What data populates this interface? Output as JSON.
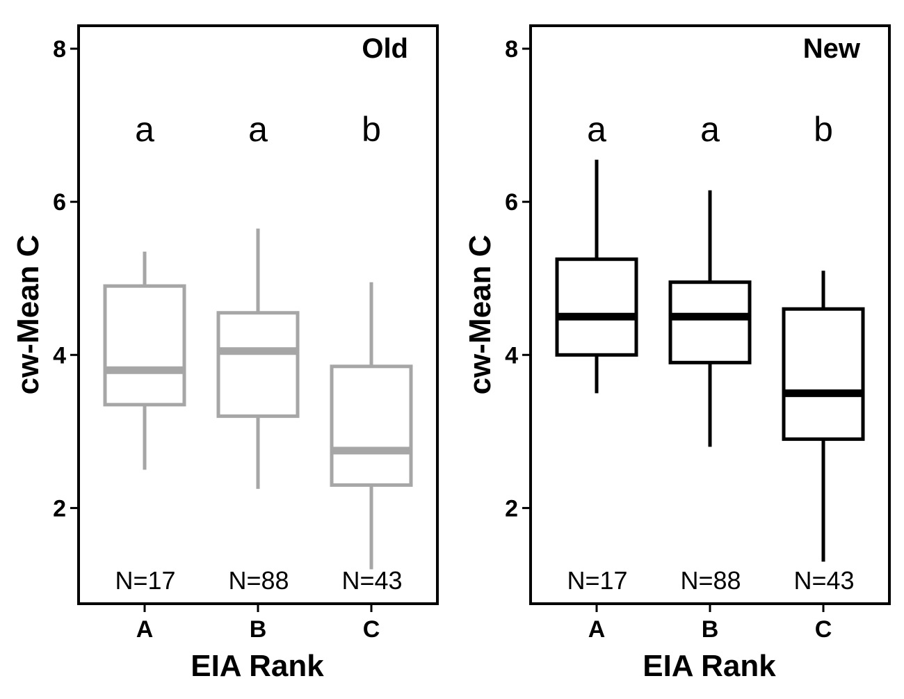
{
  "chart_data": [
    {
      "type": "boxplot",
      "title": "Old",
      "xlabel": "EIA Rank",
      "ylabel": "cw-Mean C",
      "ylim": [
        0.75,
        8.3
      ],
      "yticks": [
        2,
        4,
        6,
        8
      ],
      "color": "#a6a6a6",
      "categories": [
        "A",
        "B",
        "C"
      ],
      "boxes": [
        {
          "category": "A",
          "whisker_low": 2.5,
          "q1": 3.35,
          "median": 3.8,
          "q3": 4.9,
          "whisker_high": 5.35,
          "letter": "a",
          "n_label": "N=17"
        },
        {
          "category": "B",
          "whisker_low": 2.25,
          "q1": 3.2,
          "median": 4.05,
          "q3": 4.55,
          "whisker_high": 5.65,
          "letter": "a",
          "n_label": "N=88"
        },
        {
          "category": "C",
          "whisker_low": 1.2,
          "q1": 2.3,
          "median": 2.75,
          "q3": 3.85,
          "whisker_high": 4.95,
          "letter": "b",
          "n_label": "N=43"
        }
      ]
    },
    {
      "type": "boxplot",
      "title": "New",
      "xlabel": "EIA Rank",
      "ylabel": "cw-Mean C",
      "ylim": [
        0.75,
        8.3
      ],
      "yticks": [
        2,
        4,
        6,
        8
      ],
      "color": "#000000",
      "categories": [
        "A",
        "B",
        "C"
      ],
      "boxes": [
        {
          "category": "A",
          "whisker_low": 3.5,
          "q1": 4.0,
          "median": 4.5,
          "q3": 5.25,
          "whisker_high": 6.55,
          "letter": "a",
          "n_label": "N=17"
        },
        {
          "category": "B",
          "whisker_low": 2.8,
          "q1": 3.9,
          "median": 4.5,
          "q3": 4.95,
          "whisker_high": 6.15,
          "letter": "a",
          "n_label": "N=88"
        },
        {
          "category": "C",
          "whisker_low": 1.3,
          "q1": 2.9,
          "median": 3.5,
          "q3": 4.6,
          "whisker_high": 5.1,
          "letter": "b",
          "n_label": "N=43"
        }
      ]
    }
  ]
}
